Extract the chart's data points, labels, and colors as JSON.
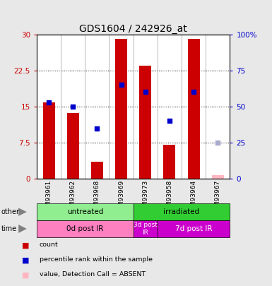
{
  "title": "GDS1604 / 242926_at",
  "samples": [
    "GSM93961",
    "GSM93962",
    "GSM93968",
    "GSM93969",
    "GSM93973",
    "GSM93958",
    "GSM93964",
    "GSM93967"
  ],
  "bar_values": [
    15.8,
    13.7,
    3.5,
    29.0,
    23.5,
    7.0,
    29.0,
    0.7
  ],
  "bar_absent": [
    false,
    false,
    false,
    false,
    false,
    false,
    false,
    true
  ],
  "rank_pct": [
    53.0,
    50.0,
    35.0,
    65.0,
    60.0,
    40.0,
    60.0,
    25.0
  ],
  "rank_absent": [
    false,
    false,
    false,
    false,
    false,
    false,
    false,
    true
  ],
  "ylim_left": [
    0,
    30
  ],
  "yticks_left": [
    0,
    7.5,
    15,
    22.5,
    30
  ],
  "ytick_labels_left": [
    "0",
    "7.5",
    "15",
    "22.5",
    "30"
  ],
  "yticks_right": [
    0,
    25,
    50,
    75,
    100
  ],
  "ytick_labels_right": [
    "0",
    "25",
    "50",
    "75",
    "100%"
  ],
  "groups": [
    {
      "label": "untreated",
      "start": 0,
      "end": 4,
      "color": "#90EE90"
    },
    {
      "label": "irradiated",
      "start": 4,
      "end": 8,
      "color": "#32CD32"
    }
  ],
  "time_groups": [
    {
      "label": "0d post IR",
      "start": 0,
      "end": 4,
      "color": "#FF80C0"
    },
    {
      "label": "3d post\nIR",
      "start": 4,
      "end": 5,
      "color": "#CC00CC"
    },
    {
      "label": "7d post IR",
      "start": 5,
      "end": 8,
      "color": "#CC00CC"
    }
  ],
  "bar_color": "#CC0000",
  "bar_absent_color": "#FFB6C1",
  "rank_color": "#0000CC",
  "rank_absent_color": "#AAAACC",
  "background_color": "#E8E8E8",
  "plot_bg": "#FFFFFF"
}
